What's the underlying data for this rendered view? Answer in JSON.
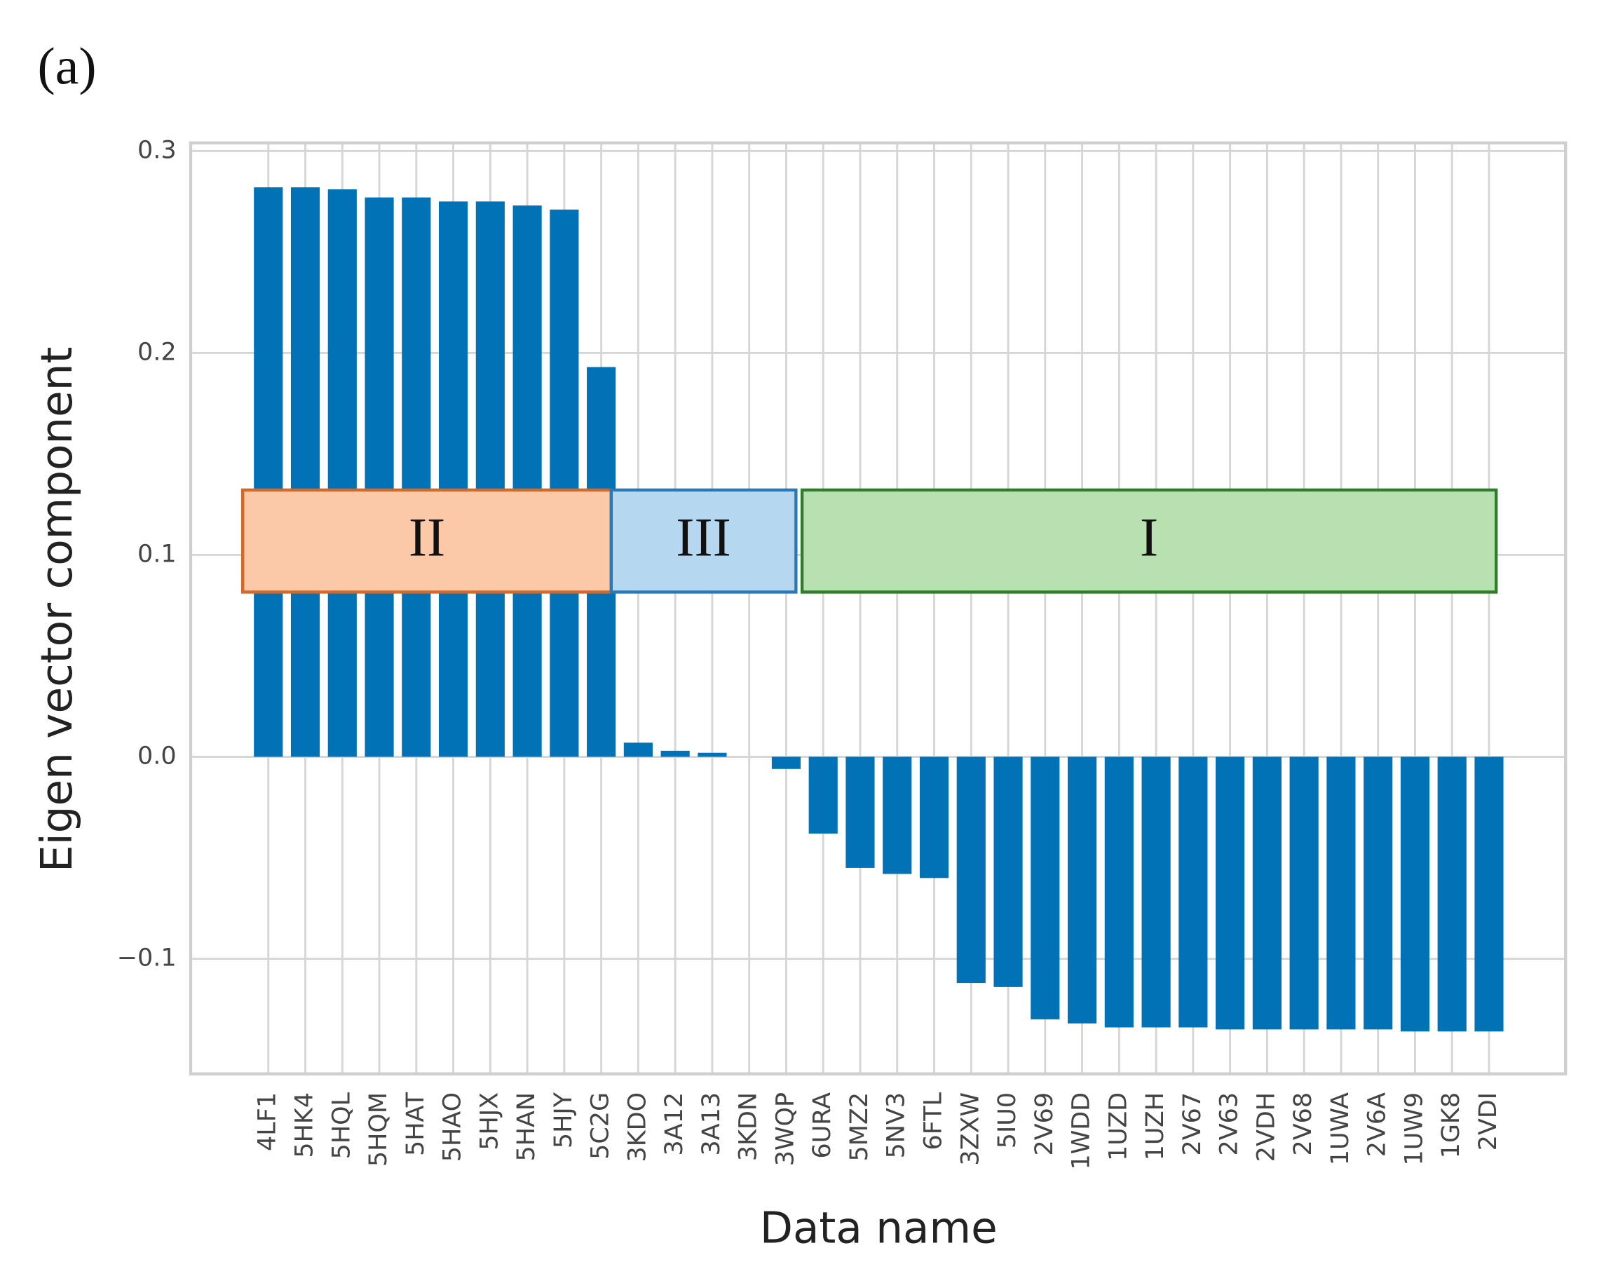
{
  "panel_label": "(a)",
  "chart_data": {
    "type": "bar",
    "xlabel": "Data name",
    "ylabel": "Eigen vector component",
    "categories": [
      "4LF1",
      "5HK4",
      "5HQL",
      "5HQM",
      "5HAT",
      "5HAO",
      "5HJX",
      "5HAN",
      "5HJY",
      "5C2G",
      "3KDO",
      "3A12",
      "3A13",
      "3KDN",
      "3WQP",
      "6URA",
      "5MZ2",
      "5NV3",
      "6FTL",
      "3ZXW",
      "5IU0",
      "2V69",
      "1WDD",
      "1UZD",
      "1UZH",
      "2V67",
      "2V63",
      "2VDH",
      "2V68",
      "1UWA",
      "2V6A",
      "1UW9",
      "1GK8",
      "2VDI"
    ],
    "values": [
      0.282,
      0.282,
      0.281,
      0.277,
      0.277,
      0.275,
      0.275,
      0.273,
      0.271,
      0.193,
      0.007,
      0.003,
      0.002,
      0.0,
      -0.006,
      -0.038,
      -0.055,
      -0.058,
      -0.06,
      -0.112,
      -0.114,
      -0.13,
      -0.132,
      -0.134,
      -0.134,
      -0.134,
      -0.135,
      -0.135,
      -0.135,
      -0.135,
      -0.135,
      -0.136,
      -0.136,
      -0.136
    ],
    "color": "#0072b5",
    "ylim": [
      -0.157,
      0.304
    ],
    "yticks": [
      {
        "value": -0.1,
        "label": "−0.1"
      },
      {
        "value": 0,
        "label": "0.0"
      },
      0.1,
      0.2,
      0.3
    ],
    "grid": true,
    "annotations": [
      {
        "text": "II",
        "fill": "#fbc9a8",
        "edge": "#d1692a"
      },
      {
        "text": "III",
        "fill": "#b5d7ef",
        "edge": "#2a78b5"
      },
      {
        "text": "I",
        "fill": "#b9e0b0",
        "edge": "#2e7d2a"
      }
    ]
  }
}
